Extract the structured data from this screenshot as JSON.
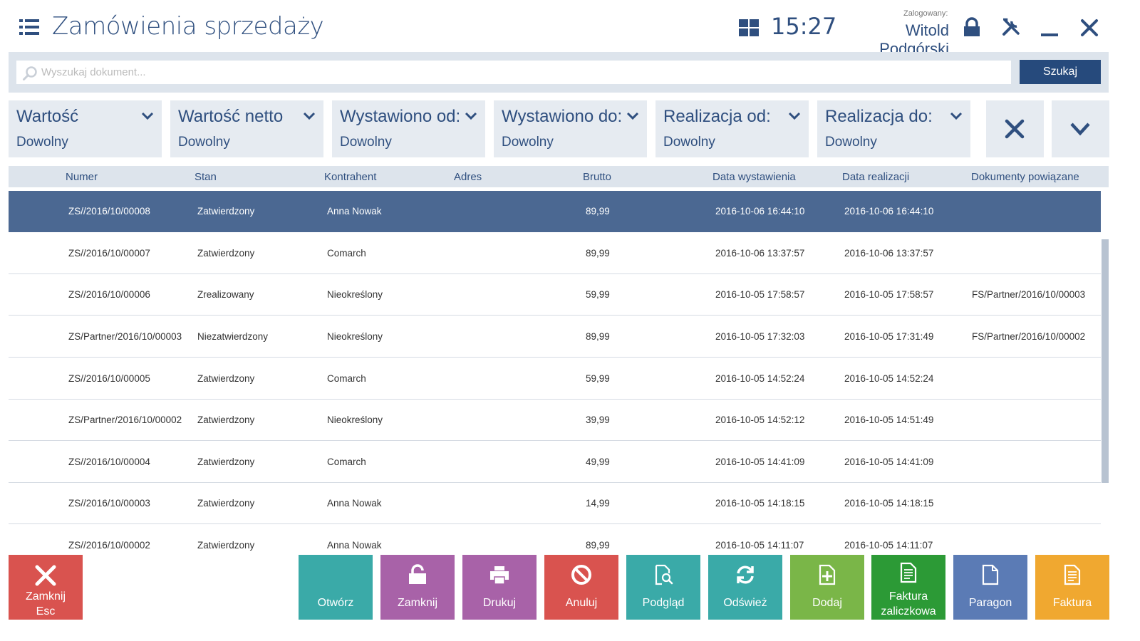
{
  "header": {
    "title": "Zamówienia sprzedaży",
    "clock": "15:27",
    "logged_label": "Zalogowany:",
    "user_name": "Witold Podgórski"
  },
  "search": {
    "placeholder": "Wyszukaj dokument...",
    "value": "",
    "button_label": "Szukaj"
  },
  "filters": [
    {
      "label": "Wartość",
      "value": "Dowolny"
    },
    {
      "label": "Wartość netto",
      "value": "Dowolny"
    },
    {
      "label": "Wystawiono od:",
      "value": "Dowolny"
    },
    {
      "label": "Wystawiono do:",
      "value": "Dowolny"
    },
    {
      "label": "Realizacja od:",
      "value": "Dowolny"
    },
    {
      "label": "Realizacja do:",
      "value": "Dowolny"
    }
  ],
  "table": {
    "columns": [
      "Numer",
      "Stan",
      "Kontrahent",
      "Adres",
      "Brutto",
      "Data wystawienia",
      "Data realizacji",
      "Dokumenty powiązane"
    ],
    "rows": [
      {
        "numer": "ZS//2016/10/00008",
        "stan": "Zatwierdzony",
        "kontrahent": "Anna Nowak",
        "adres": "",
        "brutto": "89,99",
        "data_wystawienia": "2016-10-06 16:44:10",
        "data_realizacji": "2016-10-06 16:44:10",
        "dokumenty": "",
        "selected": true
      },
      {
        "numer": "ZS//2016/10/00007",
        "stan": "Zatwierdzony",
        "kontrahent": "Comarch",
        "adres": "",
        "brutto": "89,99",
        "data_wystawienia": "2016-10-06 13:37:57",
        "data_realizacji": "2016-10-06 13:37:57",
        "dokumenty": ""
      },
      {
        "numer": "ZS//2016/10/00006",
        "stan": "Zrealizowany",
        "kontrahent": "Nieokreślony",
        "adres": "",
        "brutto": "59,99",
        "data_wystawienia": "2016-10-05 17:58:57",
        "data_realizacji": "2016-10-05 17:58:57",
        "dokumenty": "FS/Partner/2016/10/00003"
      },
      {
        "numer": "ZS/Partner/2016/10/00003",
        "stan": "Niezatwierdzony",
        "kontrahent": "Nieokreślony",
        "adres": "",
        "brutto": "89,99",
        "data_wystawienia": "2016-10-05 17:32:03",
        "data_realizacji": "2016-10-05 17:31:49",
        "dokumenty": "FS/Partner/2016/10/00002"
      },
      {
        "numer": "ZS//2016/10/00005",
        "stan": "Zatwierdzony",
        "kontrahent": "Comarch",
        "adres": "",
        "brutto": "59,99",
        "data_wystawienia": "2016-10-05 14:52:24",
        "data_realizacji": "2016-10-05 14:52:24",
        "dokumenty": ""
      },
      {
        "numer": "ZS/Partner/2016/10/00002",
        "stan": "Zatwierdzony",
        "kontrahent": "Nieokreślony",
        "adres": "",
        "brutto": "39,99",
        "data_wystawienia": "2016-10-05 14:52:12",
        "data_realizacji": "2016-10-05 14:51:49",
        "dokumenty": ""
      },
      {
        "numer": "ZS//2016/10/00004",
        "stan": "Zatwierdzony",
        "kontrahent": "Comarch",
        "adres": "",
        "brutto": "49,99",
        "data_wystawienia": "2016-10-05 14:41:09",
        "data_realizacji": "2016-10-05 14:41:09",
        "dokumenty": ""
      },
      {
        "numer": "ZS//2016/10/00003",
        "stan": "Zatwierdzony",
        "kontrahent": "Anna Nowak",
        "adres": "",
        "brutto": "14,99",
        "data_wystawienia": "2016-10-05 14:18:15",
        "data_realizacji": "2016-10-05 14:18:15",
        "dokumenty": ""
      },
      {
        "numer": "ZS//2016/10/00002",
        "stan": "Zatwierdzony",
        "kontrahent": "Anna Nowak",
        "adres": "",
        "brutto": "89,99",
        "data_wystawienia": "2016-10-05 14:11:07",
        "data_realizacji": "2016-10-05 14:11:07",
        "dokumenty": ""
      }
    ]
  },
  "actions": {
    "close": {
      "label": "Zamknij",
      "shortcut": "Esc",
      "icon": "close-icon",
      "color": "#d9534f"
    },
    "open": {
      "label": "Otwórz",
      "icon": "",
      "color": "#3aaaa8"
    },
    "close_doc": {
      "label": "Zamknij",
      "icon": "unlock-icon",
      "color": "#a862a8"
    },
    "print": {
      "label": "Drukuj",
      "icon": "printer-icon",
      "color": "#a862a8"
    },
    "cancel": {
      "label": "Anuluj",
      "icon": "cancel-icon",
      "color": "#d9534f"
    },
    "preview": {
      "label": "Podgląd",
      "icon": "preview-icon",
      "color": "#3aaaa8"
    },
    "refresh": {
      "label": "Odśwież",
      "icon": "refresh-icon",
      "color": "#3aaaa8"
    },
    "add": {
      "label": "Dodaj",
      "icon": "add-document-icon",
      "color": "#7ab648"
    },
    "advance_invoice": {
      "label": "Faktura zaliczkowa",
      "line1": "Faktura",
      "line2": "zaliczkowa",
      "icon": "invoice-icon",
      "color": "#2c9a36"
    },
    "receipt": {
      "label": "Paragon",
      "icon": "receipt-icon",
      "color": "#5b7bb5"
    },
    "invoice": {
      "label": "Faktura",
      "icon": "invoice-icon",
      "color": "#f0a830"
    }
  },
  "colors": {
    "accent": "#2f4f7f",
    "selected_row": "#4b6892",
    "filter_bg": "#e6ebf1"
  }
}
